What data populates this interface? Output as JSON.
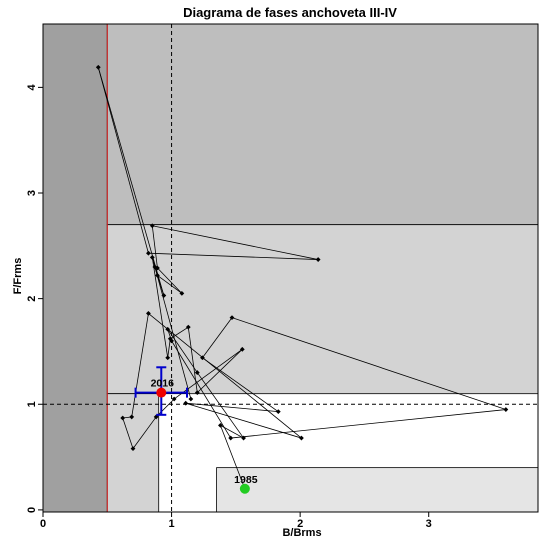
{
  "chart_data": {
    "type": "scatter",
    "title": "Diagrama de fases anchoveta III-IV",
    "xlabel": "B/Brms",
    "ylabel": "F/Frms",
    "xlim": [
      0,
      3.85
    ],
    "ylim": [
      -0.02,
      4.6
    ],
    "xticks": [
      0,
      1,
      2,
      3
    ],
    "yticks": [
      0,
      1,
      2,
      3,
      4
    ],
    "reference_lines": {
      "x": 1,
      "y": 1
    },
    "limit_line_x": 0.5,
    "regions": [
      {
        "x0": 0,
        "x1": 0.5,
        "y0": -0.02,
        "y1": 4.6,
        "color": "#a0a0a0"
      },
      {
        "x0": 0.5,
        "x1": 3.85,
        "y0": 2.7,
        "y1": 4.6,
        "color": "#bebebe"
      },
      {
        "x0": 0.5,
        "x1": 3.85,
        "y0": 1.1,
        "y1": 2.7,
        "color": "#d3d3d3"
      },
      {
        "x0": 0.5,
        "x1": 0.9,
        "y0": -0.02,
        "y1": 1.1,
        "color": "#d3d3d3"
      },
      {
        "x0": 1.35,
        "x1": 3.85,
        "y0": -0.02,
        "y1": 0.4,
        "color": "#e5e5e5"
      }
    ],
    "trajectory": {
      "x": [
        1.57,
        1.38,
        1.56,
        1.2,
        0.97,
        1.0,
        1.46,
        3.6,
        1.47,
        1.24,
        1.83,
        1.11,
        2.01,
        0.82,
        0.69,
        0.62,
        0.7,
        0.88,
        1.02,
        1.55,
        1.2,
        1.13,
        0.99,
        0.97,
        0.85,
        0.89,
        1.08,
        0.89,
        0.85,
        2.14,
        0.82,
        0.43,
        0.94,
        0.87,
        1.15
      ],
      "y": [
        0.2,
        0.8,
        0.68,
        1.3,
        1.71,
        1.6,
        0.68,
        0.95,
        1.82,
        1.44,
        0.93,
        1.01,
        0.68,
        1.86,
        0.88,
        0.87,
        0.58,
        0.88,
        1.05,
        1.52,
        1.11,
        1.73,
        1.62,
        1.44,
        2.39,
        2.22,
        2.05,
        2.29,
        2.69,
        2.37,
        2.43,
        4.19,
        2.03,
        2.3,
        1.05
      ]
    },
    "highlight_points": [
      {
        "label": "1985",
        "x": 1.57,
        "y": 0.2,
        "color": "#22cc22"
      },
      {
        "label": "2016",
        "x": 0.92,
        "y": 1.11,
        "color": "#ee0000"
      }
    ],
    "error_cross": {
      "x": 0.92,
      "y": 1.11,
      "x_err": [
        0.72,
        1.12
      ],
      "y_err": [
        0.9,
        1.35
      ],
      "color": "#0000cc"
    }
  }
}
